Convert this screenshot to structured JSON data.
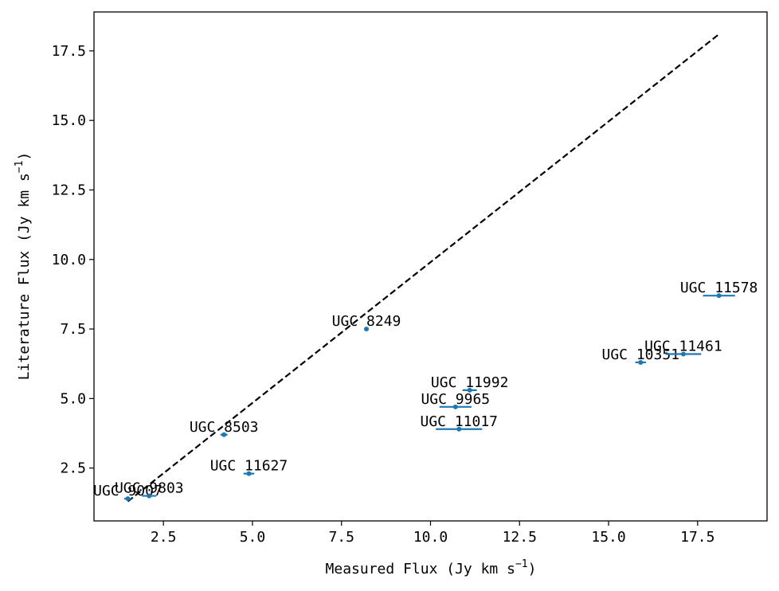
{
  "chart_data": {
    "type": "scatter",
    "xlabel_main": "Measured Flux (Jy km s",
    "xlabel_sup": "−1",
    "xlabel_end": ")",
    "ylabel_main": "Literature Flux (Jy km s",
    "ylabel_sup": "−1",
    "ylabel_end": ")",
    "xlim": [
      0.55,
      19.45
    ],
    "ylim": [
      0.6,
      18.9
    ],
    "xticks": [
      2.5,
      5.0,
      7.5,
      10.0,
      12.5,
      15.0,
      17.5
    ],
    "xtick_labels": [
      "2.5",
      "5.0",
      "7.5",
      "10.0",
      "12.5",
      "15.0",
      "17.5"
    ],
    "yticks": [
      2.5,
      5.0,
      7.5,
      10.0,
      12.5,
      15.0,
      17.5
    ],
    "ytick_labels": [
      "2.5",
      "5.0",
      "7.5",
      "10.0",
      "12.5",
      "15.0",
      "17.5"
    ],
    "grid": false,
    "point_color": "#1f77b4",
    "reference_line": {
      "x": [
        1.5,
        18.1
      ],
      "y": [
        1.3,
        18.1
      ],
      "style": "dashed",
      "color": "#000000"
    },
    "points": [
      {
        "label": "UGC 9007",
        "x": 1.5,
        "y": 1.4,
        "xerr": 0.1
      },
      {
        "label": "UGC 9803",
        "x": 2.1,
        "y": 1.5,
        "xerr": 0.2
      },
      {
        "label": "UGC 8503",
        "x": 4.2,
        "y": 3.7,
        "xerr": 0.1
      },
      {
        "label": "UGC 11627",
        "x": 4.9,
        "y": 2.3,
        "xerr": 0.15
      },
      {
        "label": "UGC 8249",
        "x": 8.2,
        "y": 7.5,
        "xerr": 0.05
      },
      {
        "label": "UGC 11992",
        "x": 11.1,
        "y": 5.3,
        "xerr": 0.2
      },
      {
        "label": "UGC 9965",
        "x": 10.7,
        "y": 4.7,
        "xerr": 0.45
      },
      {
        "label": "UGC 11017",
        "x": 10.8,
        "y": 3.9,
        "xerr": 0.65
      },
      {
        "label": "UGC 10351",
        "x": 15.9,
        "y": 6.3,
        "xerr": 0.15
      },
      {
        "label": "UGC 11461",
        "x": 17.1,
        "y": 6.6,
        "xerr": 0.5
      },
      {
        "label": "UGC 11578",
        "x": 18.1,
        "y": 8.7,
        "xerr": 0.45
      }
    ]
  }
}
